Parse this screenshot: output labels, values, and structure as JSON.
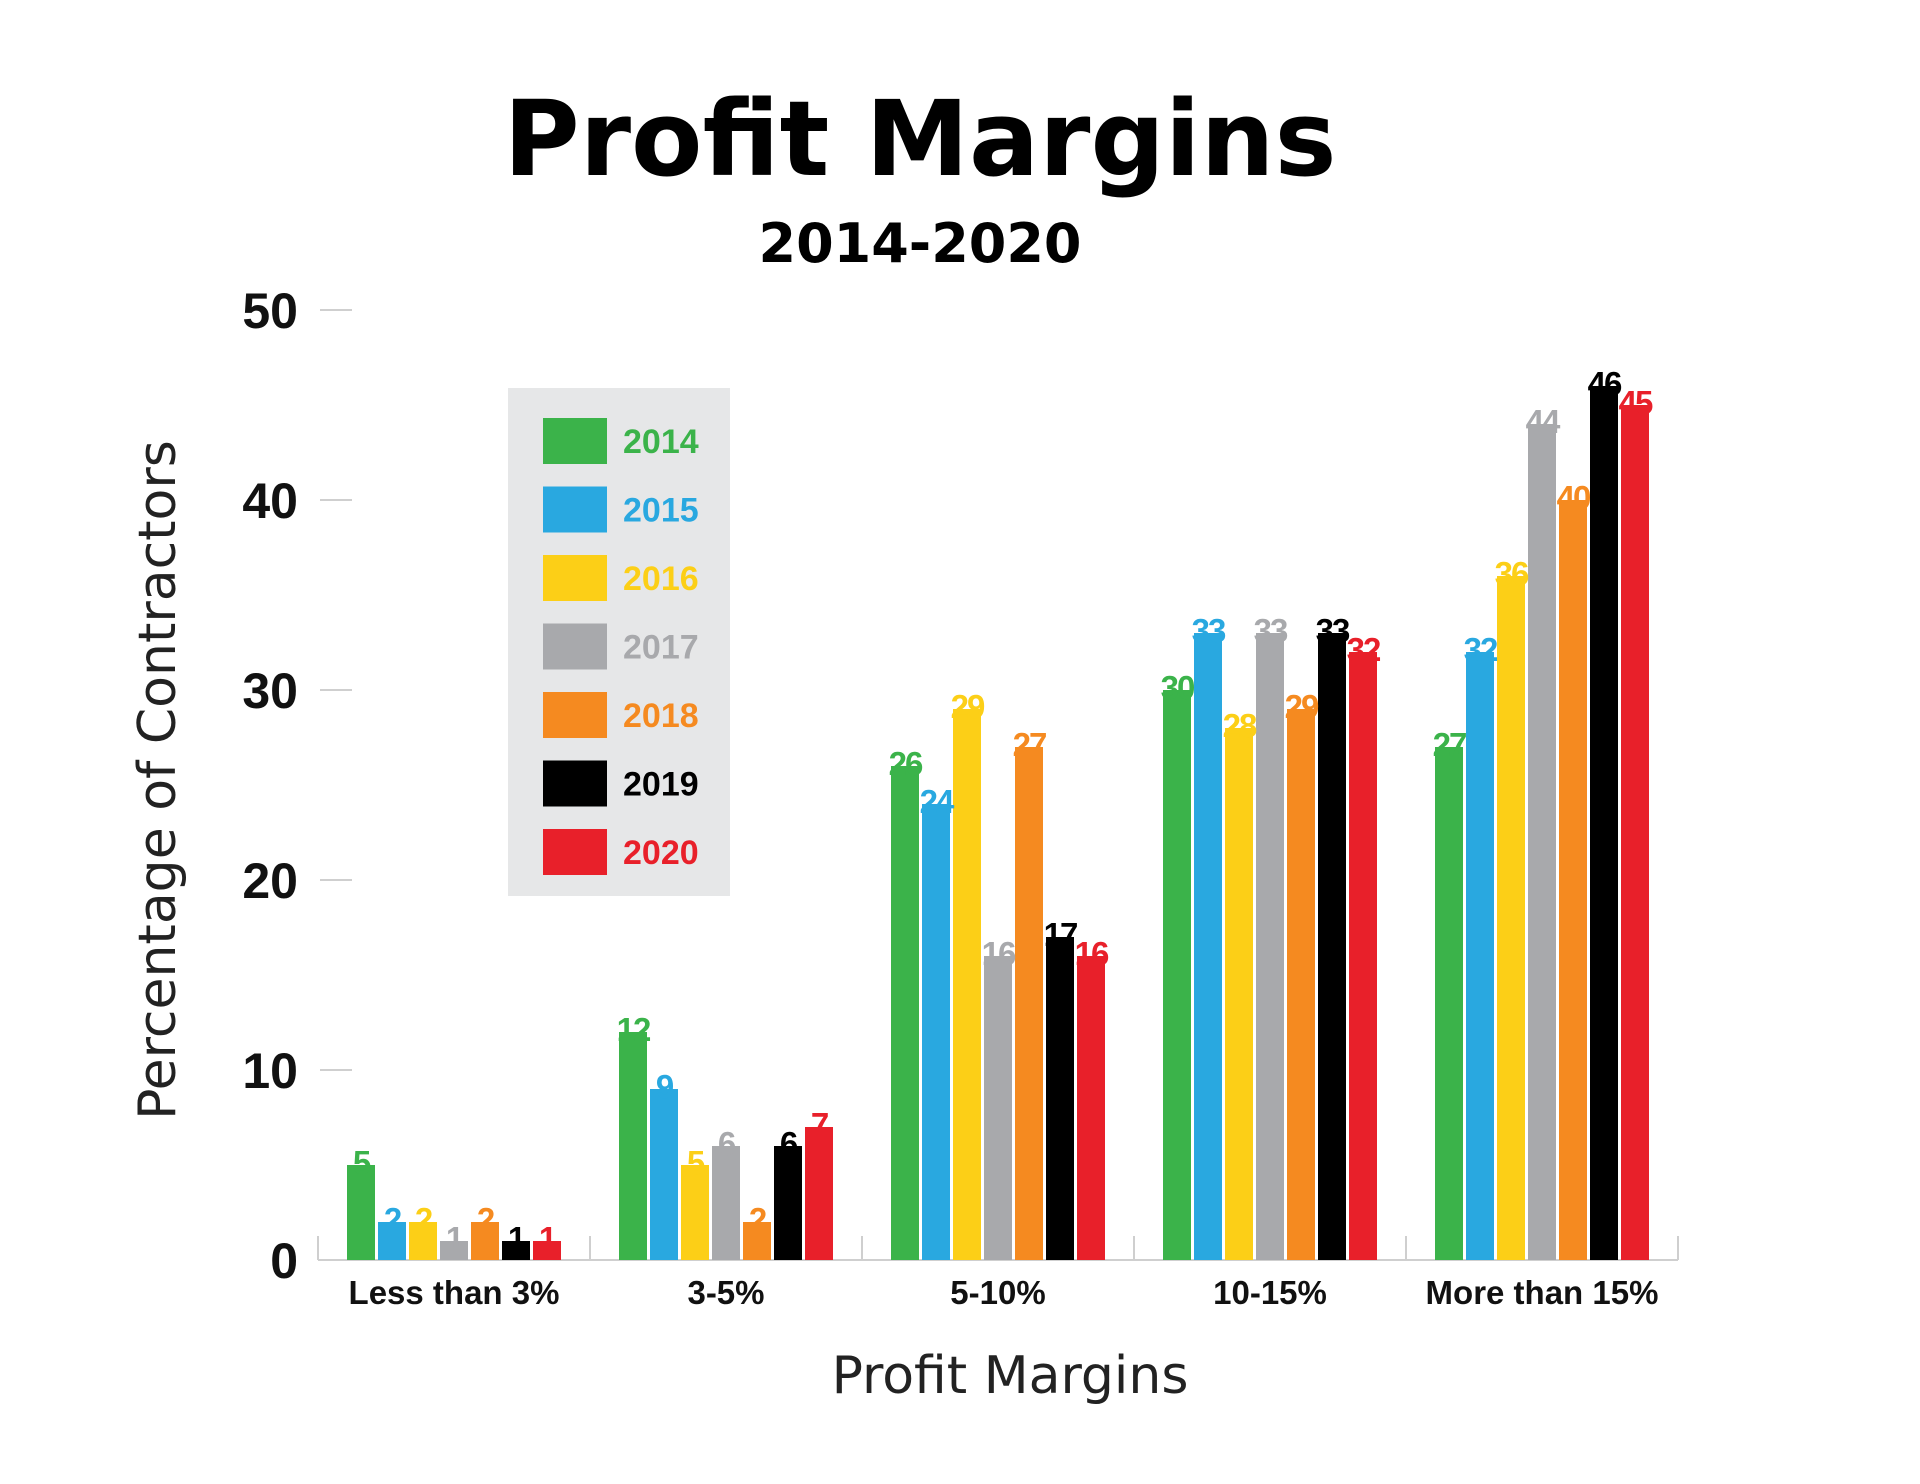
{
  "chart_data": {
    "type": "bar",
    "title": "Profit Margins",
    "subtitle": "2014-2020",
    "xlabel": "Profit Margins",
    "ylabel": "Percentage of Contractors",
    "ylim": [
      0,
      50
    ],
    "yticks": [
      "0",
      "10",
      "20",
      "30",
      "40",
      "50"
    ],
    "grid": false,
    "legend_position": "top-left",
    "categories": [
      "Less than 3%",
      "3-5%",
      "5-10%",
      "10-15%",
      "More than 15%"
    ],
    "series": [
      {
        "name": "2014",
        "color": "#3bb34a",
        "values": [
          5,
          12,
          26,
          30,
          27
        ]
      },
      {
        "name": "2015",
        "color": "#29a8e0",
        "values": [
          2,
          9,
          24,
          33,
          32
        ]
      },
      {
        "name": "2016",
        "color": "#fccf17",
        "values": [
          2,
          5,
          29,
          28,
          36
        ]
      },
      {
        "name": "2017",
        "color": "#a8a9ac",
        "values": [
          1,
          6,
          16,
          33,
          44
        ]
      },
      {
        "name": "2018",
        "color": "#f58a20",
        "values": [
          2,
          2,
          27,
          29,
          40
        ]
      },
      {
        "name": "2019",
        "color": "#000000",
        "values": [
          1,
          6,
          17,
          33,
          46
        ]
      },
      {
        "name": "2020",
        "color": "#e8202a",
        "values": [
          1,
          7,
          16,
          32,
          45
        ]
      }
    ]
  }
}
